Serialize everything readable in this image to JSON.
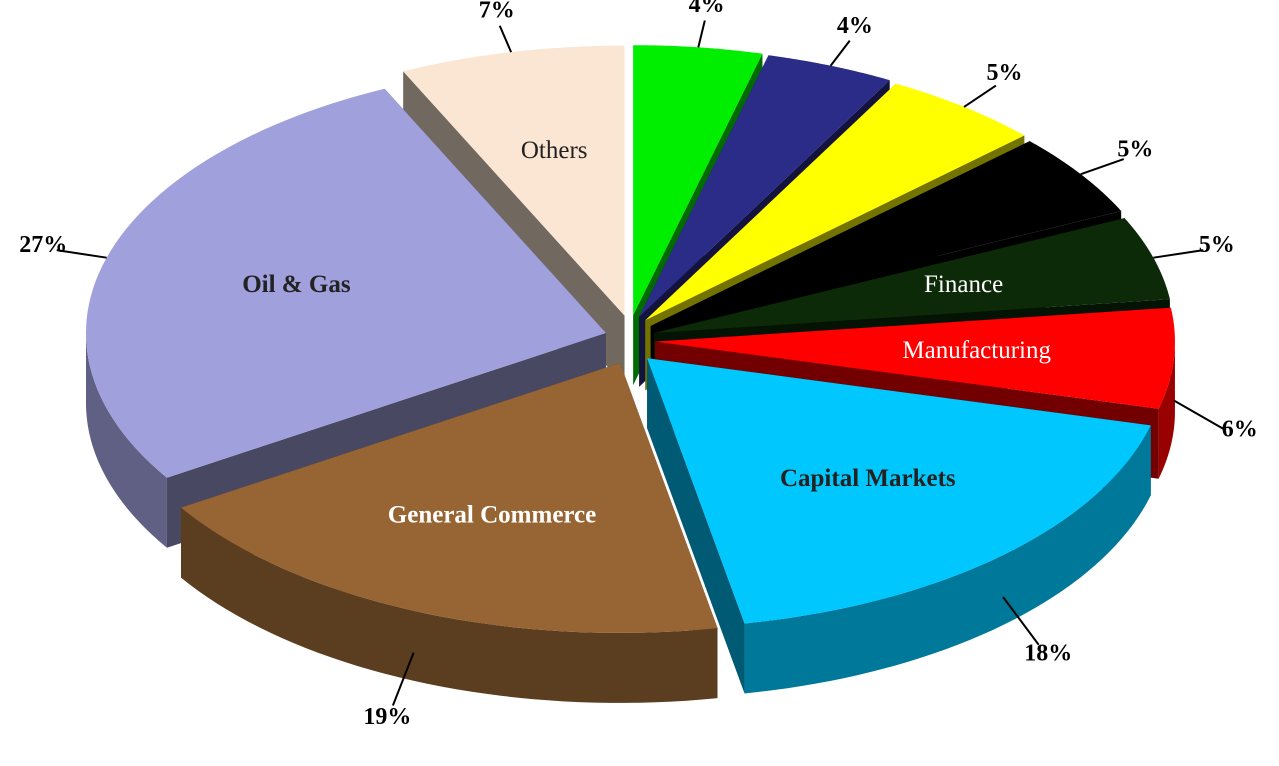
{
  "chart_data": {
    "type": "pie",
    "categories": [
      null,
      null,
      null,
      null,
      "Finance",
      "Manufacturing",
      "Capital Markets",
      "General Commerce",
      "Oil & Gas",
      "Others"
    ],
    "values": [
      4,
      4,
      5,
      5,
      5,
      6,
      18,
      19,
      27,
      7
    ],
    "value_labels": [
      "4%",
      "4%",
      "5%",
      "5%",
      "5%",
      "6%",
      "18%",
      "19%",
      "27%",
      "7%"
    ],
    "colors": [
      "#00ee00",
      "#2b2b88",
      "#ffff00",
      "#000000",
      "#0c2a08",
      "#ff0000",
      "#00c8ff",
      "#976533",
      "#a0a0dc",
      "#fae6d2"
    ]
  }
}
